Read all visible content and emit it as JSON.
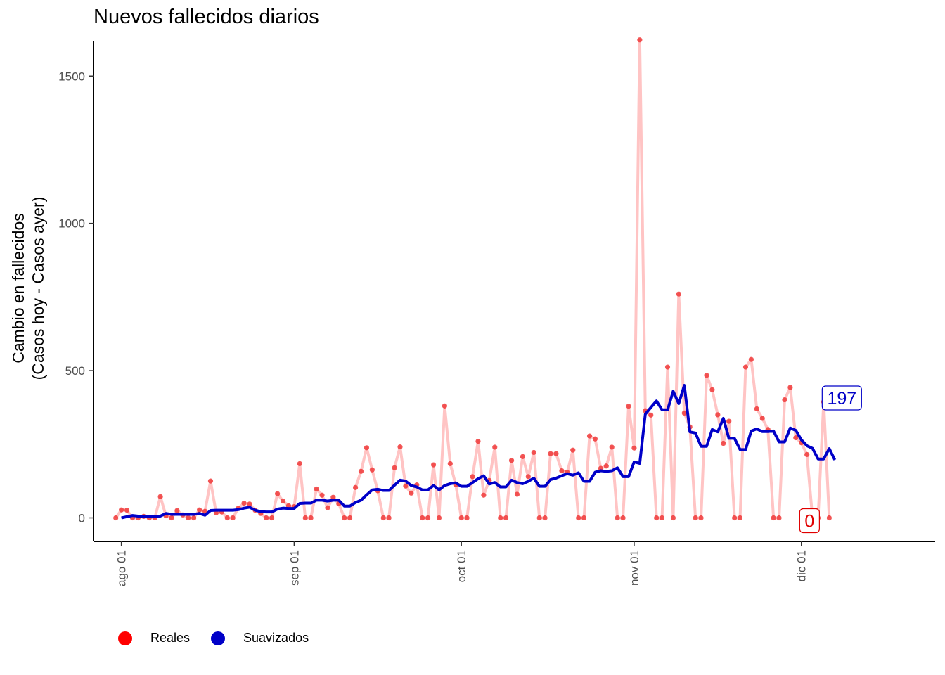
{
  "chart_data": {
    "type": "line",
    "title": "Nuevos fallecidos diarios",
    "xlabel": "",
    "ylabel_line1": "Cambio en fallecidos",
    "ylabel_line2": "(Casos hoy - Casos ayer)",
    "x_start": "2020-07-31",
    "x_ticks": [
      {
        "label": "ago 01",
        "date": "2020-08-01"
      },
      {
        "label": "sep 01",
        "date": "2020-09-01"
      },
      {
        "label": "oct 01",
        "date": "2020-10-01"
      },
      {
        "label": "nov 01",
        "date": "2020-11-01"
      },
      {
        "label": "dic 01",
        "date": "2020-12-01"
      }
    ],
    "y_ticks": [
      0,
      500,
      1000,
      1500
    ],
    "ylim": [
      -80,
      1620
    ],
    "xlim": [
      "2020-07-27",
      "2020-12-25"
    ],
    "grid": false,
    "legend_position": "bottom-left",
    "colors": {
      "reales_points": "#f03a3a",
      "reales_line": "#ffc4c4",
      "suavizados": "#0000c8",
      "legend_reales": "#ff0000",
      "legend_suavizados": "#0000c8"
    },
    "series": [
      {
        "name": "Reales",
        "values": [
          0,
          27,
          26,
          0,
          0,
          5,
          0,
          0,
          72,
          7,
          0,
          25,
          10,
          0,
          0,
          27,
          22,
          125,
          17,
          20,
          0,
          0,
          33,
          50,
          47,
          26,
          15,
          0,
          0,
          82,
          57,
          41,
          38,
          184,
          0,
          0,
          98,
          77,
          34,
          70,
          48,
          0,
          0,
          103,
          158,
          238,
          163,
          92,
          0,
          0,
          170,
          241,
          108,
          84,
          112,
          0,
          0,
          180,
          0,
          380,
          184,
          112,
          0,
          0,
          140,
          260,
          77,
          127,
          240,
          0,
          0,
          195,
          80,
          208,
          140,
          222,
          0,
          0,
          218,
          218,
          160,
          155,
          230,
          0,
          0,
          278,
          268,
          168,
          176,
          240,
          0,
          0,
          379,
          237,
          1623,
          364,
          349,
          0,
          0,
          512,
          0,
          760,
          356,
          309,
          0,
          0,
          484,
          435,
          350,
          253,
          328,
          0,
          0,
          512,
          538,
          370,
          338,
          300,
          0,
          0,
          401,
          443,
          272,
          255,
          215,
          0,
          0,
          394,
          0
        ]
      },
      {
        "name": "Suavizados",
        "values": [
          0,
          4,
          8,
          6,
          6,
          6,
          6,
          6,
          15,
          12,
          12,
          12,
          12,
          12,
          15,
          9,
          25,
          26,
          26,
          26,
          26,
          28,
          33,
          36,
          26,
          21,
          20,
          20,
          30,
          33,
          32,
          32,
          49,
          50,
          50,
          60,
          60,
          57,
          60,
          60,
          40,
          40,
          52,
          60,
          78,
          95,
          97,
          93,
          93,
          111,
          128,
          125,
          110,
          105,
          95,
          95,
          110,
          95,
          110,
          116,
          119,
          107,
          107,
          120,
          133,
          143,
          115,
          120,
          105,
          105,
          128,
          120,
          116,
          124,
          135,
          107,
          107,
          130,
          135,
          143,
          150,
          145,
          153,
          124,
          124,
          155,
          160,
          158,
          160,
          170,
          140,
          140,
          190,
          185,
          352,
          375,
          397,
          367,
          367,
          430,
          388,
          450,
          292,
          288,
          243,
          243,
          300,
          292,
          338,
          270,
          270,
          232,
          232,
          295,
          302,
          293,
          293,
          295,
          258,
          258,
          305,
          297,
          265,
          245,
          236,
          200,
          200,
          235,
          197
        ]
      }
    ],
    "labels": {
      "last_smoothed": "197",
      "last_real": "0"
    }
  }
}
